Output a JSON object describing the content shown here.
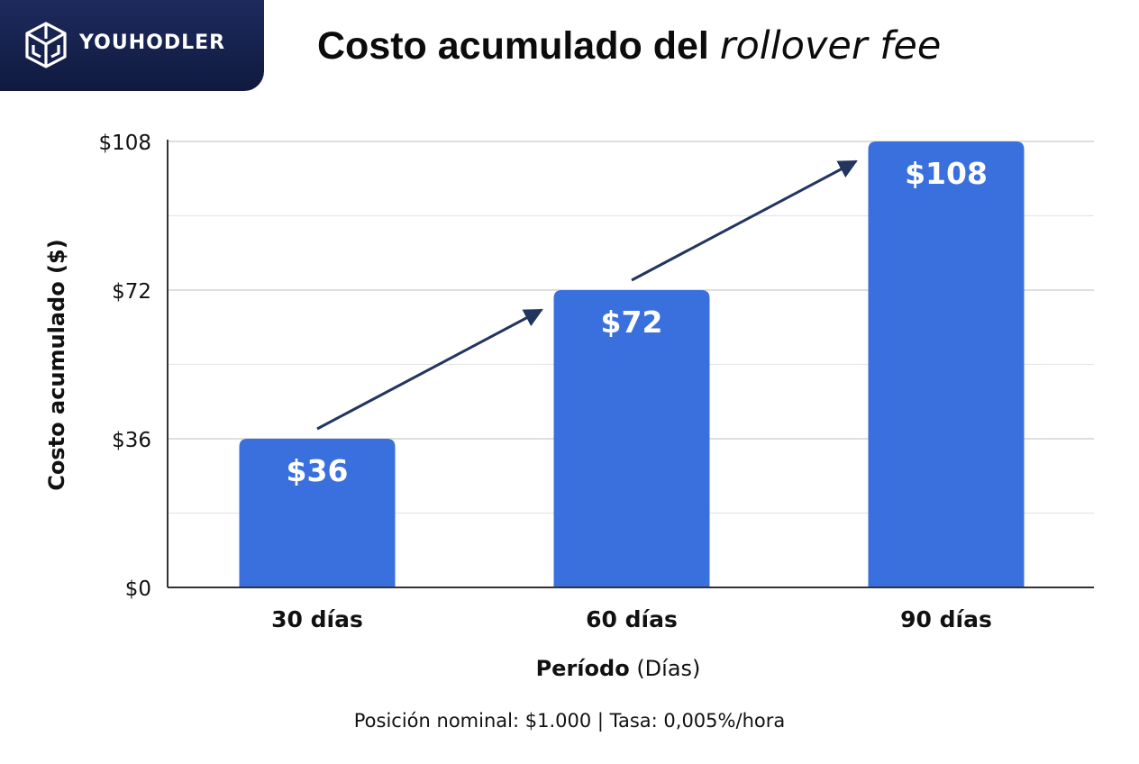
{
  "brand": {
    "name": "YOUHODLER",
    "logo_icon": "youhodler-cube-logo-icon"
  },
  "title": {
    "main": "Costo acumulado del ",
    "italic": "rollover fee"
  },
  "colors": {
    "bar": "#3a6fde",
    "arrow": "#22355f",
    "axis": "#333333",
    "grid": "#dddddd",
    "badge": "#152256"
  },
  "chart_data": {
    "type": "bar",
    "categories": [
      "30 días",
      "60 días",
      "90 días"
    ],
    "values": [
      36,
      72,
      108
    ],
    "data_labels": [
      "$36",
      "$72",
      "$108"
    ],
    "ylim": [
      0,
      108
    ],
    "yticks": [
      0,
      36,
      72,
      108
    ],
    "ytick_labels": [
      "$0",
      "$36",
      "$72",
      "$108"
    ],
    "minor_grid": [
      18,
      54,
      90
    ],
    "ylabel": "Costo acumulado ($)",
    "xlabel_bold": "Período",
    "xlabel_rest": " (Días)",
    "grid": true
  },
  "footnote": "Posición nominal: $1.000 | Tasa: 0,005%/hora"
}
